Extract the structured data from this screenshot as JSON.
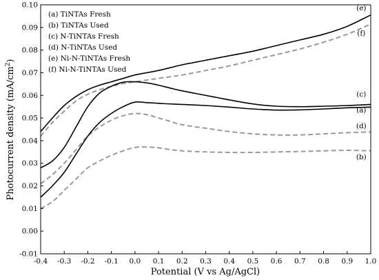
{
  "chart_data": {
    "type": "line",
    "xlabel": "Potential (V vs Ag/AgCl)",
    "ylabel_main": "Photocurrent density (mA/cm",
    "ylabel_sup": "2",
    "ylabel_close": ")",
    "xlim": [
      -0.4,
      1.0
    ],
    "ylim": [
      -0.01,
      0.1
    ],
    "xticks": [
      -0.4,
      -0.3,
      -0.2,
      -0.1,
      0.0,
      0.1,
      0.2,
      0.3,
      0.4,
      0.5,
      0.6,
      0.7,
      0.8,
      0.9,
      1.0
    ],
    "xtick_labels": [
      "-0.4",
      "-0.3",
      "-0.2",
      "-0.1",
      "0.0",
      "0.1",
      "0.2",
      "0.3",
      "0.4",
      "0.5",
      "0.6",
      "0.7",
      "0.8",
      "0.9",
      "1.0"
    ],
    "yticks": [
      -0.01,
      0.0,
      0.01,
      0.02,
      0.03,
      0.04,
      0.05,
      0.06,
      0.07,
      0.08,
      0.09,
      0.1
    ],
    "ytick_labels": [
      "-0.01",
      "0.00",
      "0.01",
      "0.02",
      "0.03",
      "0.04",
      "0.05",
      "0.06",
      "0.07",
      "0.08",
      "0.09",
      "0.10"
    ],
    "grid": false,
    "legend_position": "top-left",
    "legend": [
      "(a) TiNTAs Fresh",
      "(b) TiNTAs Used",
      "(c) N-TiNTAs Fresh",
      "(d) N-TiNTAs Used",
      "(e) Ni-N-TiNTAs Fresh",
      "(f)  Ni-N-TiNTAs Used"
    ],
    "series": [
      {
        "tag": "(a)",
        "style": "solid",
        "color": "#000000",
        "x": [
          -0.4,
          -0.35,
          -0.3,
          -0.25,
          -0.2,
          -0.15,
          -0.1,
          -0.05,
          0.0,
          0.05,
          0.1,
          0.15,
          0.2,
          0.3,
          0.4,
          0.5,
          0.6,
          0.7,
          0.8,
          0.9,
          1.0
        ],
        "y": [
          0.015,
          0.02,
          0.026,
          0.034,
          0.042,
          0.048,
          0.052,
          0.055,
          0.057,
          0.0568,
          0.0565,
          0.0562,
          0.056,
          0.0555,
          0.0548,
          0.054,
          0.0535,
          0.0536,
          0.054,
          0.0545,
          0.0548
        ]
      },
      {
        "tag": "(b)",
        "style": "dashed",
        "color": "#999999",
        "x": [
          -0.4,
          -0.35,
          -0.3,
          -0.25,
          -0.2,
          -0.15,
          -0.1,
          -0.05,
          0.0,
          0.05,
          0.1,
          0.15,
          0.2,
          0.3,
          0.4,
          0.5,
          0.6,
          0.7,
          0.8,
          0.9,
          1.0
        ],
        "y": [
          0.01,
          0.013,
          0.018,
          0.023,
          0.028,
          0.031,
          0.0335,
          0.0355,
          0.037,
          0.0372,
          0.0368,
          0.036,
          0.0355,
          0.035,
          0.0348,
          0.0348,
          0.035,
          0.0352,
          0.0355,
          0.0357,
          0.0355
        ]
      },
      {
        "tag": "(c)",
        "style": "solid",
        "color": "#000000",
        "x": [
          -0.4,
          -0.35,
          -0.3,
          -0.25,
          -0.2,
          -0.15,
          -0.1,
          -0.05,
          0.0,
          0.05,
          0.1,
          0.15,
          0.2,
          0.3,
          0.4,
          0.5,
          0.6,
          0.7,
          0.8,
          0.9,
          1.0
        ],
        "y": [
          0.028,
          0.031,
          0.037,
          0.046,
          0.055,
          0.061,
          0.064,
          0.0658,
          0.066,
          0.0655,
          0.0645,
          0.0632,
          0.062,
          0.06,
          0.058,
          0.0562,
          0.0552,
          0.055,
          0.0552,
          0.0555,
          0.056
        ]
      },
      {
        "tag": "(d)",
        "style": "dashed",
        "color": "#999999",
        "x": [
          -0.4,
          -0.35,
          -0.3,
          -0.25,
          -0.2,
          -0.15,
          -0.1,
          -0.05,
          0.0,
          0.05,
          0.1,
          0.15,
          0.2,
          0.3,
          0.4,
          0.5,
          0.6,
          0.7,
          0.8,
          0.9,
          1.0
        ],
        "y": [
          0.021,
          0.025,
          0.03,
          0.036,
          0.042,
          0.046,
          0.049,
          0.051,
          0.052,
          0.0515,
          0.05,
          0.0485,
          0.047,
          0.0455,
          0.044,
          0.043,
          0.0425,
          0.0425,
          0.043,
          0.0435,
          0.0438
        ]
      },
      {
        "tag": "(e)",
        "style": "solid",
        "color": "#000000",
        "x": [
          -0.4,
          -0.35,
          -0.3,
          -0.25,
          -0.2,
          -0.15,
          -0.1,
          -0.05,
          0.0,
          0.1,
          0.2,
          0.3,
          0.4,
          0.5,
          0.6,
          0.7,
          0.8,
          0.9,
          1.0
        ],
        "y": [
          0.044,
          0.05,
          0.0555,
          0.0595,
          0.0625,
          0.0645,
          0.066,
          0.0675,
          0.069,
          0.071,
          0.0735,
          0.0755,
          0.0775,
          0.0795,
          0.082,
          0.0845,
          0.087,
          0.0905,
          0.0955
        ]
      },
      {
        "tag": "(f)",
        "style": "dashed",
        "color": "#999999",
        "x": [
          -0.4,
          -0.35,
          -0.3,
          -0.25,
          -0.2,
          -0.15,
          -0.1,
          -0.05,
          0.0,
          0.1,
          0.2,
          0.3,
          0.4,
          0.5,
          0.6,
          0.7,
          0.8,
          0.9,
          1.0
        ],
        "y": [
          0.042,
          0.048,
          0.053,
          0.0575,
          0.0605,
          0.0625,
          0.064,
          0.0652,
          0.066,
          0.0675,
          0.069,
          0.071,
          0.073,
          0.0755,
          0.078,
          0.0805,
          0.0835,
          0.087,
          0.0915
        ]
      }
    ],
    "curve_labels": [
      {
        "text": "(e)",
        "x": 0.96,
        "y": 0.0975
      },
      {
        "text": "(f)",
        "x": 0.96,
        "y": 0.0865
      },
      {
        "text": "(c)",
        "x": 0.96,
        "y": 0.0595
      },
      {
        "text": "(a)",
        "x": 0.96,
        "y": 0.0525
      },
      {
        "text": "(d)",
        "x": 0.96,
        "y": 0.0455
      },
      {
        "text": "(b)",
        "x": 0.96,
        "y": 0.0318
      }
    ]
  }
}
